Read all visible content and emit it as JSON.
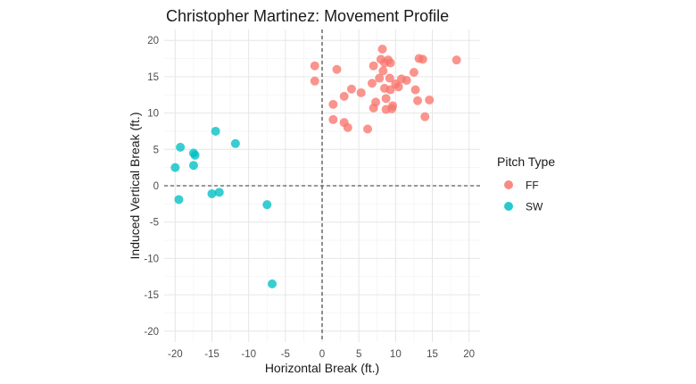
{
  "chart_data": {
    "type": "scatter",
    "title": "Christopher Martinez: Movement Profile",
    "xlabel": "Horizontal Break (ft.)",
    "ylabel": "Induced Vertical Break (ft.)",
    "xlim": [
      -21.5,
      21.5
    ],
    "ylim": [
      -21.5,
      21.5
    ],
    "xticks": [
      -20,
      -15,
      -10,
      -5,
      0,
      5,
      10,
      15,
      20
    ],
    "yticks": [
      -20,
      -15,
      -10,
      -5,
      0,
      5,
      10,
      15,
      20
    ],
    "xtick_labels": [
      "-20",
      "-15",
      "-10",
      "-5",
      "0",
      "5",
      "10",
      "15",
      "20"
    ],
    "ytick_labels": [
      "-20",
      "-15",
      "-10",
      "-5",
      "0",
      "5",
      "10",
      "15",
      "20"
    ],
    "grid": true,
    "reference_lines": {
      "x": 0,
      "y": 0,
      "style": "dashed"
    },
    "legend": {
      "title": "Pitch Type",
      "placement": "right"
    },
    "series": [
      {
        "name": "FF",
        "color": "#F8766D",
        "points": [
          [
            -1.0,
            16.5
          ],
          [
            -1.0,
            14.4
          ],
          [
            2.0,
            16.0
          ],
          [
            1.5,
            11.2
          ],
          [
            1.5,
            9.1
          ],
          [
            3.0,
            12.3
          ],
          [
            3.0,
            8.7
          ],
          [
            3.5,
            8.0
          ],
          [
            4.0,
            13.3
          ],
          [
            5.3,
            12.8
          ],
          [
            6.2,
            7.8
          ],
          [
            6.8,
            14.1
          ],
          [
            7.0,
            16.5
          ],
          [
            7.0,
            10.7
          ],
          [
            7.3,
            11.5
          ],
          [
            7.8,
            14.8
          ],
          [
            8.0,
            17.4
          ],
          [
            8.2,
            18.8
          ],
          [
            8.3,
            15.8
          ],
          [
            8.5,
            16.9
          ],
          [
            8.5,
            13.4
          ],
          [
            8.7,
            12.0
          ],
          [
            8.7,
            10.5
          ],
          [
            9.0,
            17.3
          ],
          [
            9.2,
            14.8
          ],
          [
            9.3,
            16.9
          ],
          [
            9.3,
            13.2
          ],
          [
            9.5,
            10.6
          ],
          [
            9.6,
            11.0
          ],
          [
            10.0,
            14.0
          ],
          [
            10.4,
            13.6
          ],
          [
            10.8,
            14.7
          ],
          [
            11.5,
            14.5
          ],
          [
            12.5,
            15.6
          ],
          [
            12.7,
            13.2
          ],
          [
            13.0,
            11.7
          ],
          [
            13.2,
            17.5
          ],
          [
            13.7,
            17.4
          ],
          [
            14.0,
            9.5
          ],
          [
            14.6,
            11.8
          ],
          [
            18.3,
            17.3
          ]
        ]
      },
      {
        "name": "SW",
        "color": "#00BFC4",
        "points": [
          [
            -20.0,
            2.5
          ],
          [
            -19.3,
            5.3
          ],
          [
            -19.5,
            -1.9
          ],
          [
            -17.5,
            4.5
          ],
          [
            -17.3,
            4.2
          ],
          [
            -17.5,
            2.8
          ],
          [
            -15.0,
            -1.1
          ],
          [
            -14.5,
            7.5
          ],
          [
            -14.0,
            -0.9
          ],
          [
            -11.8,
            5.8
          ],
          [
            -7.5,
            -2.6
          ],
          [
            -6.8,
            -13.5
          ]
        ]
      }
    ]
  }
}
